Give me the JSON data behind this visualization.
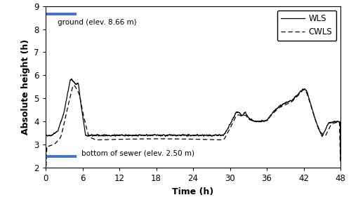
{
  "title": "",
  "xlabel": "Time (h)",
  "ylabel": "Absolute height (h)",
  "xlim": [
    0,
    48
  ],
  "ylim": [
    2,
    9
  ],
  "xticks": [
    0,
    6,
    12,
    18,
    24,
    30,
    36,
    42,
    48
  ],
  "yticks": [
    2,
    3,
    4,
    5,
    6,
    7,
    8,
    9
  ],
  "ground_elev": 8.66,
  "bottom_elev": 2.5,
  "ground_label": "ground (elev. 8.66 m)",
  "bottom_label": "bottom of sewer (elev. 2.50 m)",
  "ground_line_x": [
    0,
    5
  ],
  "bottom_line_x": [
    0,
    5
  ],
  "line_color": "#4472C4",
  "wls_color": "#000000",
  "cwls_color": "#000000",
  "legend_wls": "WLS",
  "legend_cwls": "CWLS"
}
